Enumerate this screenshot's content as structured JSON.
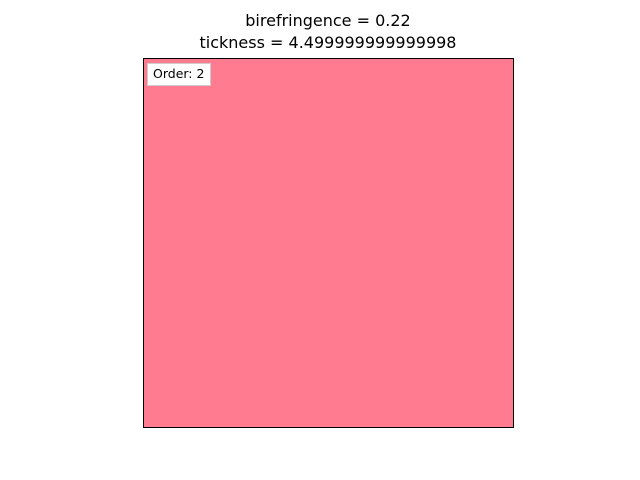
{
  "chart_data": {
    "type": "heatmap",
    "title": {
      "line1": "birefringence = 0.22",
      "line2": "tickness = 4.499999999999998"
    },
    "annotation": "Order: 2",
    "fill_color": "#ff7b8f",
    "xlabel": "",
    "ylabel": "",
    "axes_ticks_visible": false,
    "grid": false
  }
}
